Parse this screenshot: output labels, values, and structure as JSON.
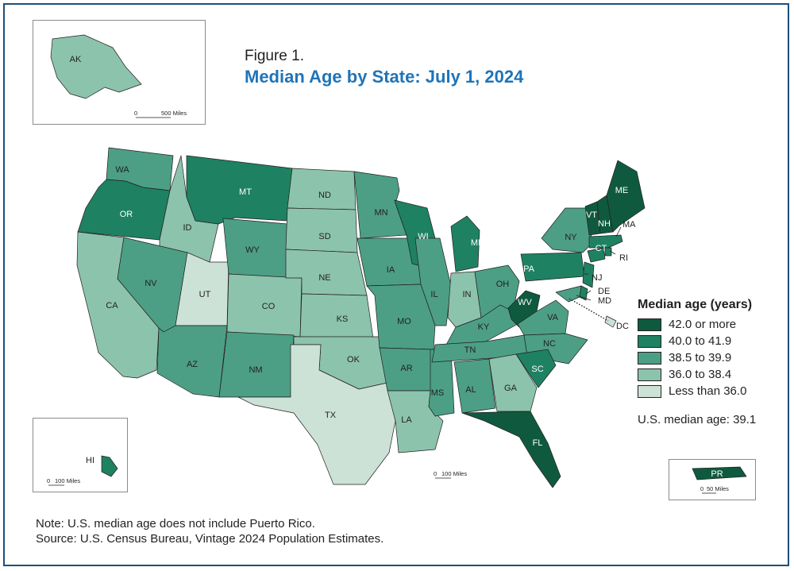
{
  "figure": {
    "label": "Figure 1.",
    "title": "Median Age by State: July 1, 2024"
  },
  "legend": {
    "title": "Median age (years)",
    "classes": [
      {
        "label": "42.0 or more",
        "color": "#0f5a3f"
      },
      {
        "label": "40.0 to 41.9",
        "color": "#1e8162"
      },
      {
        "label": "38.5 to 39.9",
        "color": "#4c9f85"
      },
      {
        "label": "36.0 to 38.4",
        "color": "#8cc3ad"
      },
      {
        "label": "Less than 36.0",
        "color": "#cde2d6"
      }
    ]
  },
  "us_median": "U.S. median age: 39.1",
  "notes": {
    "note": "Note: U.S. median age does not include Puerto Rico.",
    "source": "Source: U.S. Census Bureau, Vintage 2024 Population Estimates."
  },
  "scale_bars": {
    "alaska": {
      "zero": "0",
      "distance": "500 Miles"
    },
    "hawaii": {
      "zero": "0",
      "distance": "100 Miles"
    },
    "mainland": {
      "zero": "0",
      "distance": "100 Miles"
    },
    "puerto_rico": {
      "zero": "0",
      "distance": "50 Miles"
    }
  },
  "states": [
    {
      "abbr": "WA",
      "class": 2
    },
    {
      "abbr": "OR",
      "class": 1
    },
    {
      "abbr": "CA",
      "class": 3
    },
    {
      "abbr": "ID",
      "class": 3
    },
    {
      "abbr": "NV",
      "class": 2
    },
    {
      "abbr": "UT",
      "class": 4
    },
    {
      "abbr": "AZ",
      "class": 2
    },
    {
      "abbr": "MT",
      "class": 1
    },
    {
      "abbr": "WY",
      "class": 2
    },
    {
      "abbr": "CO",
      "class": 3
    },
    {
      "abbr": "NM",
      "class": 2
    },
    {
      "abbr": "ND",
      "class": 3
    },
    {
      "abbr": "SD",
      "class": 3
    },
    {
      "abbr": "NE",
      "class": 3
    },
    {
      "abbr": "KS",
      "class": 3
    },
    {
      "abbr": "OK",
      "class": 3
    },
    {
      "abbr": "TX",
      "class": 4
    },
    {
      "abbr": "MN",
      "class": 2
    },
    {
      "abbr": "IA",
      "class": 2
    },
    {
      "abbr": "MO",
      "class": 2
    },
    {
      "abbr": "AR",
      "class": 2
    },
    {
      "abbr": "LA",
      "class": 3
    },
    {
      "abbr": "WI",
      "class": 1
    },
    {
      "abbr": "IL",
      "class": 2
    },
    {
      "abbr": "MS",
      "class": 2
    },
    {
      "abbr": "MI",
      "class": 1
    },
    {
      "abbr": "IN",
      "class": 3
    },
    {
      "abbr": "KY",
      "class": 2
    },
    {
      "abbr": "TN",
      "class": 2
    },
    {
      "abbr": "AL",
      "class": 2
    },
    {
      "abbr": "GA",
      "class": 3
    },
    {
      "abbr": "FL",
      "class": 0
    },
    {
      "abbr": "OH",
      "class": 2
    },
    {
      "abbr": "WV",
      "class": 0
    },
    {
      "abbr": "VA",
      "class": 2
    },
    {
      "abbr": "NC",
      "class": 2
    },
    {
      "abbr": "SC",
      "class": 1
    },
    {
      "abbr": "PA",
      "class": 1
    },
    {
      "abbr": "NY",
      "class": 2
    },
    {
      "abbr": "NJ",
      "class": 1
    },
    {
      "abbr": "DE",
      "class": 1
    },
    {
      "abbr": "MD",
      "class": 2
    },
    {
      "abbr": "DC",
      "class": 4
    },
    {
      "abbr": "CT",
      "class": 1
    },
    {
      "abbr": "RI",
      "class": 1
    },
    {
      "abbr": "MA",
      "class": 1
    },
    {
      "abbr": "VT",
      "class": 0
    },
    {
      "abbr": "NH",
      "class": 0
    },
    {
      "abbr": "ME",
      "class": 0
    },
    {
      "abbr": "AK",
      "class": 3
    },
    {
      "abbr": "HI",
      "class": 1
    },
    {
      "abbr": "PR",
      "class": 0
    }
  ]
}
